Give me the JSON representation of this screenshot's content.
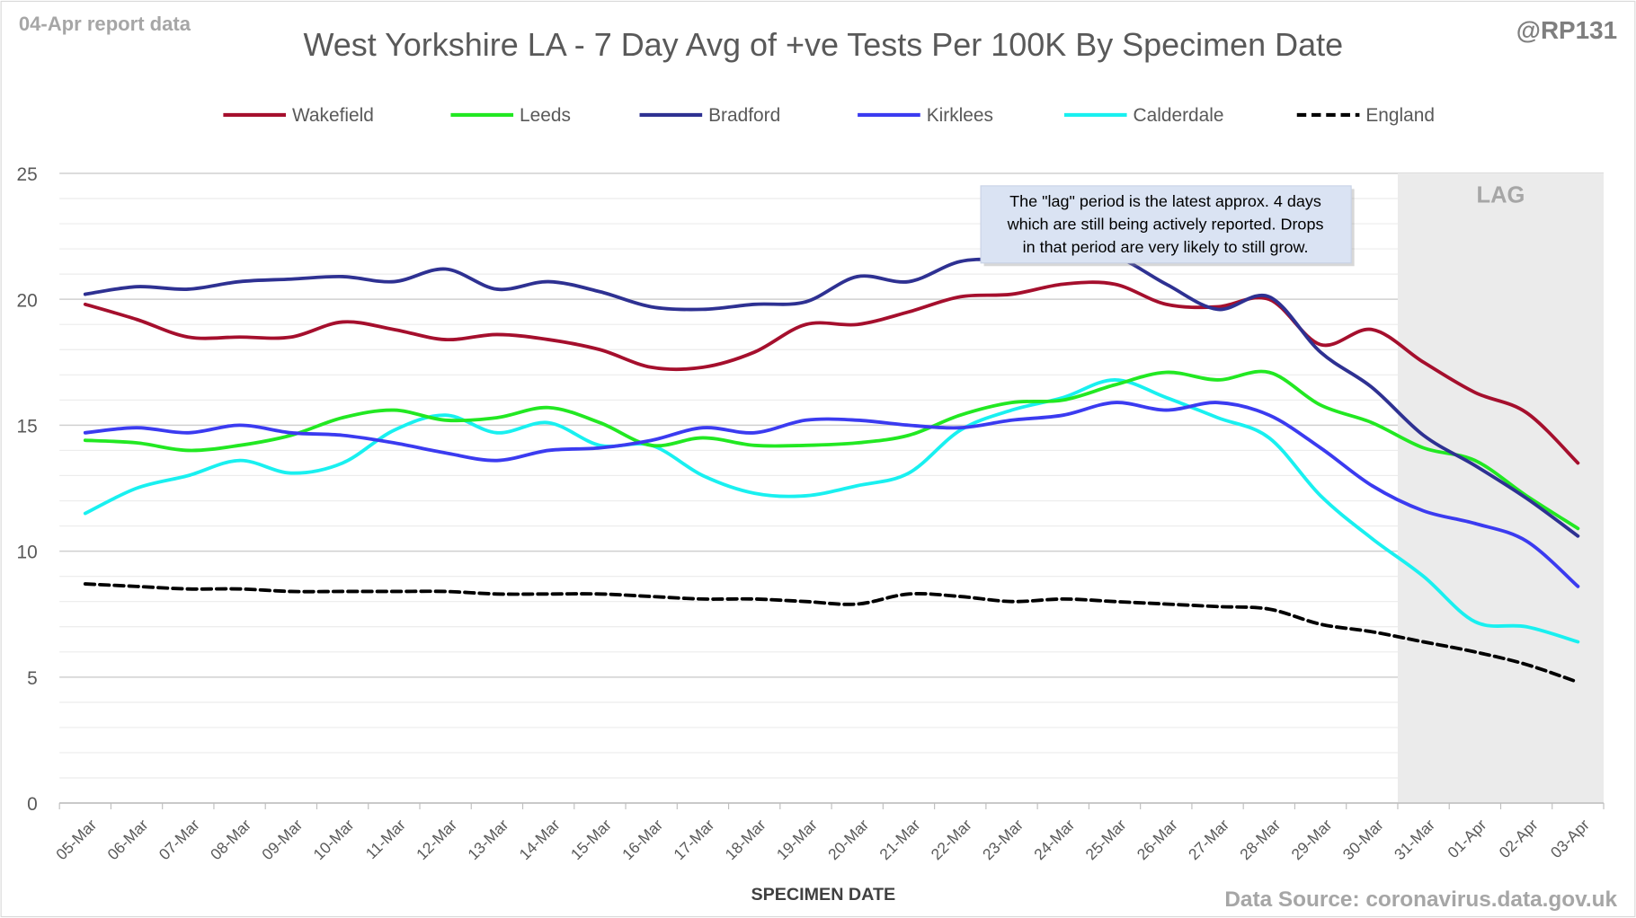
{
  "header": {
    "report_label": "04-Apr report data",
    "handle": "@RP131",
    "source": "Data Source: coronavirus.data.gov.uk"
  },
  "annotation": {
    "lines": [
      "The \"lag\" period is the latest approx. 4 days",
      "which are still being actively reported.  Drops",
      "in that period are very likely to still grow."
    ],
    "lag_label": "LAG"
  },
  "chart_data": {
    "type": "line",
    "title": "West Yorkshire LA - 7 Day Avg of +ve Tests Per 100K By Specimen Date",
    "xlabel": "SPECIMEN DATE",
    "ylabel": "",
    "ylim": [
      0,
      25
    ],
    "yticks": [
      0,
      5,
      10,
      15,
      20,
      25
    ],
    "grid": true,
    "legend_position": "top",
    "lag_start_category": "31-Mar",
    "categories": [
      "05-Mar",
      "06-Mar",
      "07-Mar",
      "08-Mar",
      "09-Mar",
      "10-Mar",
      "11-Mar",
      "12-Mar",
      "13-Mar",
      "14-Mar",
      "15-Mar",
      "16-Mar",
      "17-Mar",
      "18-Mar",
      "19-Mar",
      "20-Mar",
      "21-Mar",
      "22-Mar",
      "23-Mar",
      "24-Mar",
      "25-Mar",
      "26-Mar",
      "27-Mar",
      "28-Mar",
      "29-Mar",
      "30-Mar",
      "31-Mar",
      "01-Apr",
      "02-Apr",
      "03-Apr"
    ],
    "series": [
      {
        "name": "Wakefield",
        "color": "#a50f2d",
        "dash": false,
        "values": [
          19.8,
          19.2,
          18.5,
          18.5,
          18.5,
          19.1,
          18.8,
          18.4,
          18.6,
          18.4,
          18.0,
          17.3,
          17.3,
          17.9,
          19.0,
          19.0,
          19.5,
          20.1,
          20.2,
          20.6,
          20.6,
          19.8,
          19.7,
          20.0,
          18.2,
          18.8,
          17.5,
          16.3,
          15.5,
          13.5
        ]
      },
      {
        "name": "Leeds",
        "color": "#22e822",
        "dash": false,
        "values": [
          14.4,
          14.3,
          14.0,
          14.2,
          14.6,
          15.3,
          15.6,
          15.2,
          15.3,
          15.7,
          15.1,
          14.2,
          14.5,
          14.2,
          14.2,
          14.3,
          14.6,
          15.4,
          15.9,
          16.0,
          16.6,
          17.1,
          16.8,
          17.1,
          15.8,
          15.1,
          14.1,
          13.6,
          12.2,
          10.9
        ]
      },
      {
        "name": "Bradford",
        "color": "#2e3192",
        "dash": false,
        "values": [
          20.2,
          20.5,
          20.4,
          20.7,
          20.8,
          20.9,
          20.7,
          21.2,
          20.4,
          20.7,
          20.3,
          19.7,
          19.6,
          19.8,
          19.9,
          20.9,
          20.7,
          21.5,
          21.6,
          21.8,
          21.7,
          20.6,
          19.6,
          20.1,
          17.9,
          16.5,
          14.6,
          13.4,
          12.1,
          10.6
        ]
      },
      {
        "name": "Kirklees",
        "color": "#3b3bf0",
        "dash": false,
        "values": [
          14.7,
          14.9,
          14.7,
          15.0,
          14.7,
          14.6,
          14.3,
          13.9,
          13.6,
          14.0,
          14.1,
          14.4,
          14.9,
          14.7,
          15.2,
          15.2,
          15.0,
          14.9,
          15.2,
          15.4,
          15.9,
          15.6,
          15.9,
          15.4,
          14.1,
          12.6,
          11.6,
          11.1,
          10.4,
          8.6
        ]
      },
      {
        "name": "Calderdale",
        "color": "#19f0f0",
        "dash": false,
        "values": [
          11.5,
          12.5,
          13.0,
          13.6,
          13.1,
          13.5,
          14.8,
          15.4,
          14.7,
          15.1,
          14.2,
          14.2,
          13.0,
          12.3,
          12.2,
          12.6,
          13.1,
          14.8,
          15.6,
          16.1,
          16.8,
          16.1,
          15.3,
          14.5,
          12.2,
          10.5,
          9.0,
          7.2,
          7.0,
          6.4
        ]
      },
      {
        "name": "England",
        "color": "#000000",
        "dash": true,
        "values": [
          8.7,
          8.6,
          8.5,
          8.5,
          8.4,
          8.4,
          8.4,
          8.4,
          8.3,
          8.3,
          8.3,
          8.2,
          8.1,
          8.1,
          8.0,
          7.9,
          8.3,
          8.2,
          8.0,
          8.1,
          8.0,
          7.9,
          7.8,
          7.7,
          7.1,
          6.8,
          6.4,
          6.0,
          5.5,
          4.8
        ]
      }
    ]
  }
}
